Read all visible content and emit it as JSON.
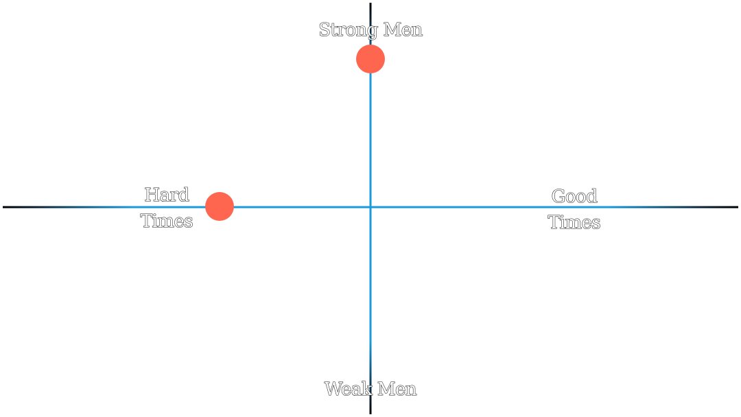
{
  "diagram": {
    "labels": {
      "top": "Strong Men",
      "bottom": "Weak Men",
      "left_line1": "Hard",
      "left_line2": "Times",
      "right_line1": "Good",
      "right_line2": "Times"
    },
    "colors": {
      "axis": "#1a9bdc",
      "axis_end": "#0b2233",
      "marker": "#ff6650"
    }
  }
}
